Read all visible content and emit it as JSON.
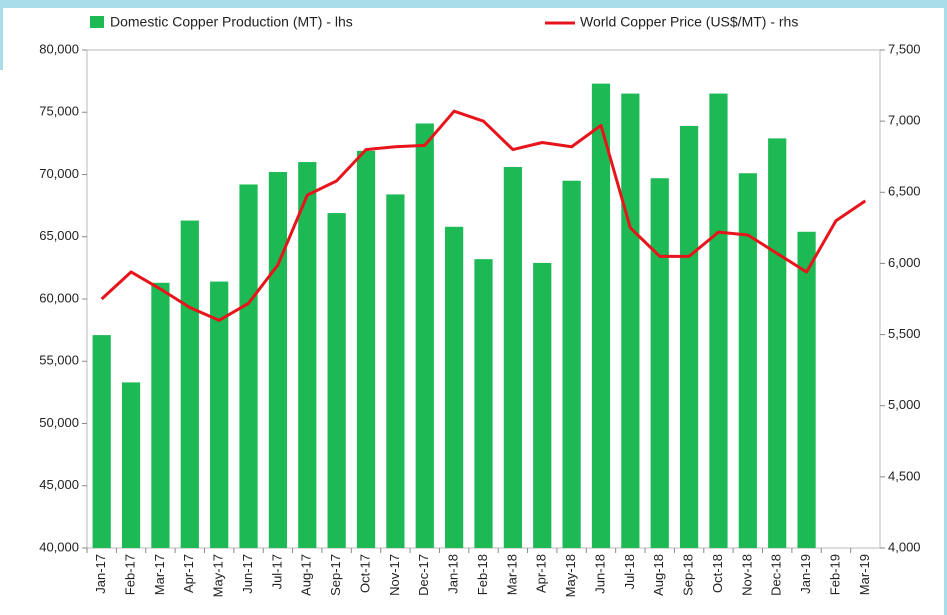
{
  "chart_data": {
    "type": "bar-line",
    "categories": [
      "Jan-17",
      "Feb-17",
      "Mar-17",
      "Apr-17",
      "May-17",
      "Jun-17",
      "Jul-17",
      "Aug-17",
      "Sep-17",
      "Oct-17",
      "Nov-17",
      "Dec-17",
      "Jan-18",
      "Feb-18",
      "Mar-18",
      "Apr-18",
      "May-18",
      "Jun-18",
      "Jul-18",
      "Aug-18",
      "Sep-18",
      "Oct-18",
      "Nov-18",
      "Dec-18",
      "Jan-19",
      "Feb-19",
      "Mar-19"
    ],
    "series": [
      {
        "name": "Domestic Copper Production (MT) - lhs",
        "color": "#1db954",
        "type": "bar",
        "axis": "y",
        "values": [
          57100,
          53300,
          61300,
          66300,
          61400,
          69200,
          70200,
          71000,
          66900,
          71900,
          68400,
          74100,
          65800,
          63200,
          70600,
          62900,
          69500,
          77300,
          76500,
          69700,
          73900,
          76500,
          70100,
          72900,
          65400,
          null,
          null
        ]
      },
      {
        "name": "World Copper Price (US$/MT) - rhs",
        "color": "#e8141c",
        "type": "line",
        "axis": "y2",
        "values": [
          5750,
          5940,
          5820,
          5690,
          5600,
          5720,
          5990,
          6480,
          6580,
          6800,
          6820,
          6830,
          7070,
          7000,
          6800,
          6850,
          6820,
          6970,
          6250,
          6050,
          6050,
          6220,
          6200,
          6070,
          5940,
          6300,
          6440
        ]
      }
    ],
    "ylim": [
      40000,
      80000
    ],
    "yticks": [
      {
        "value": 40000,
        "label": "40,000"
      },
      {
        "value": 45000,
        "label": "45,000"
      },
      {
        "value": 50000,
        "label": "50,000"
      },
      {
        "value": 55000,
        "label": "55,000"
      },
      {
        "value": 60000,
        "label": "60,000"
      },
      {
        "value": 65000,
        "label": "65,000"
      },
      {
        "value": 70000,
        "label": "70,000"
      },
      {
        "value": 75000,
        "label": "75,000"
      },
      {
        "value": 80000,
        "label": "80,000"
      }
    ],
    "y2lim": [
      4000,
      7500
    ],
    "y2ticks": [
      {
        "value": 4000,
        "label": "4,000"
      },
      {
        "value": 4500,
        "label": "4,500"
      },
      {
        "value": 5000,
        "label": "5,000"
      },
      {
        "value": 5500,
        "label": "5,500"
      },
      {
        "value": 6000,
        "label": "6,000"
      },
      {
        "value": 6500,
        "label": "6,500"
      },
      {
        "value": 7000,
        "label": "7,000"
      },
      {
        "value": 7500,
        "label": "7,500"
      }
    ],
    "grid": false,
    "legend": "top"
  }
}
